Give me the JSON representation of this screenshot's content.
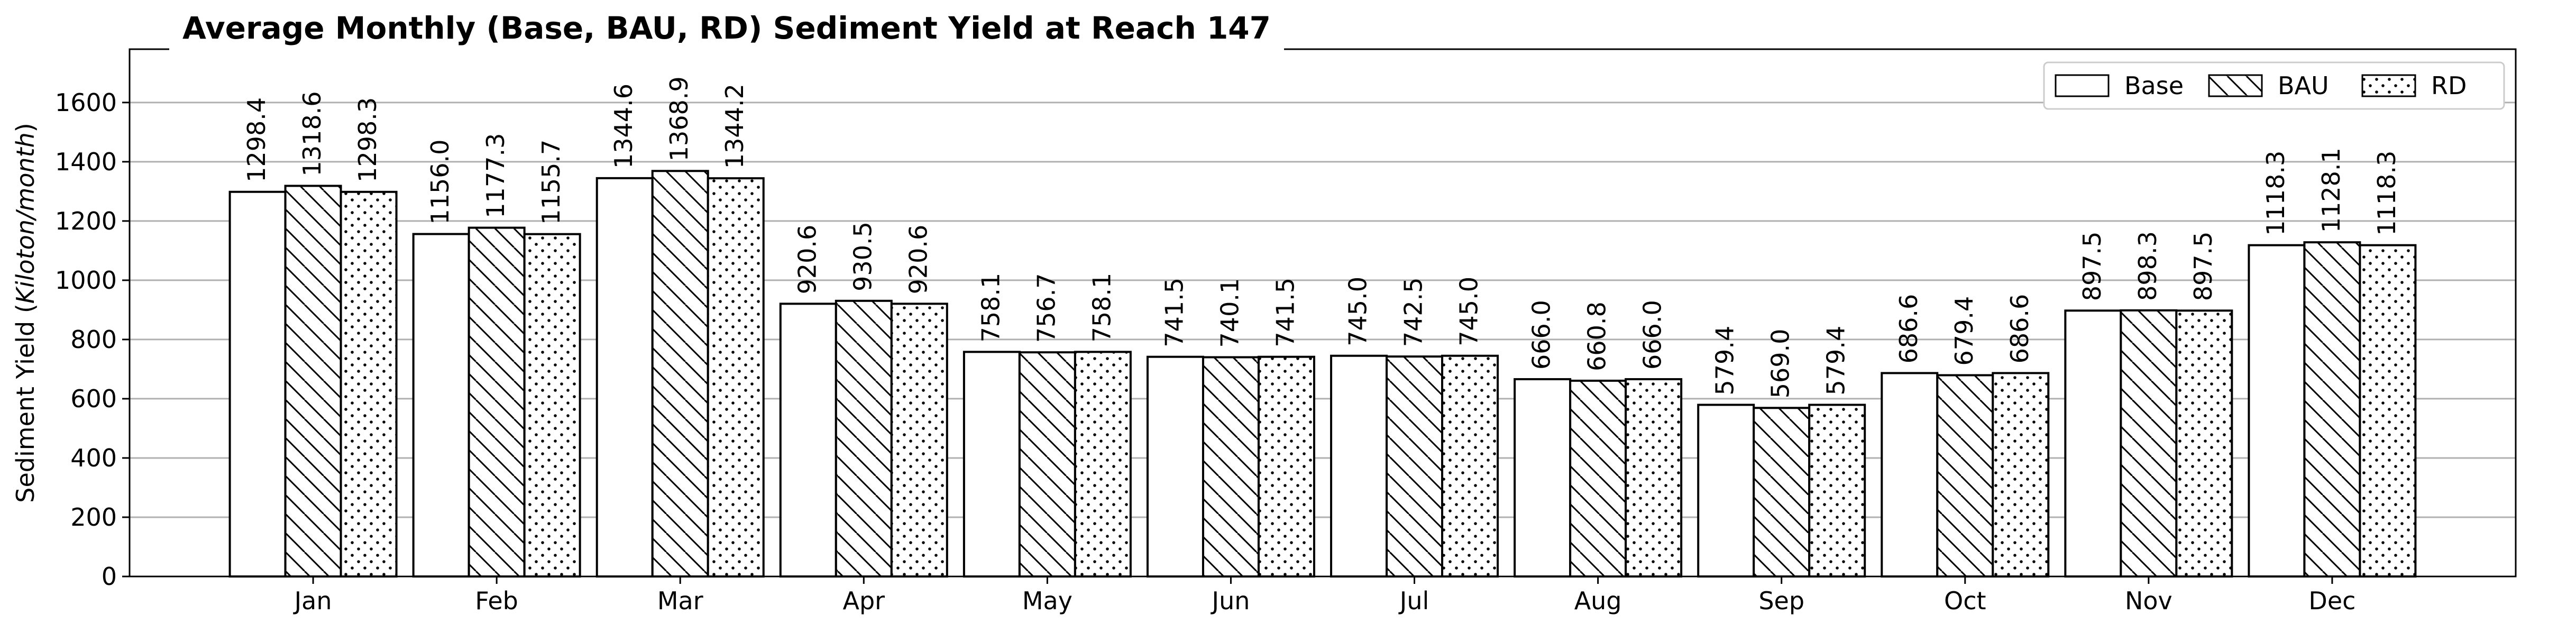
{
  "chart_data": {
    "type": "bar",
    "title": "Average Monthly (Base, BAU, RD) Sediment Yield at Reach 147",
    "xlabel": "",
    "ylabel_main": "Sediment Yield (",
    "ylabel_unit": "Kiloton/month",
    "ylabel_close": ")",
    "ylim": [
      0,
      1780
    ],
    "yticks": [
      0,
      200,
      400,
      600,
      800,
      1000,
      1200,
      1400,
      1600
    ],
    "grid": "horizontal",
    "legend_position": "top-right",
    "categories": [
      "Jan",
      "Feb",
      "Mar",
      "Apr",
      "May",
      "Jun",
      "Jul",
      "Aug",
      "Sep",
      "Oct",
      "Nov",
      "Dec"
    ],
    "series": [
      {
        "name": "Base",
        "pattern": "plain",
        "values": [
          1298.4,
          1156.0,
          1344.6,
          920.6,
          758.1,
          741.5,
          745.0,
          666.0,
          579.4,
          686.6,
          897.5,
          1118.3
        ]
      },
      {
        "name": "BAU",
        "pattern": "diagonal-hatch",
        "values": [
          1318.6,
          1177.3,
          1368.9,
          930.5,
          756.7,
          740.1,
          742.5,
          660.8,
          569.0,
          679.4,
          898.3,
          1128.1
        ]
      },
      {
        "name": "RD",
        "pattern": "dots",
        "values": [
          1298.3,
          1155.7,
          1344.2,
          920.6,
          758.1,
          741.5,
          745.0,
          666.0,
          579.4,
          686.6,
          897.5,
          1118.3
        ]
      }
    ],
    "colors": {
      "bar_fill": "#ffffff",
      "bar_edge": "#000000",
      "grid": "#b0b0b0"
    }
  }
}
